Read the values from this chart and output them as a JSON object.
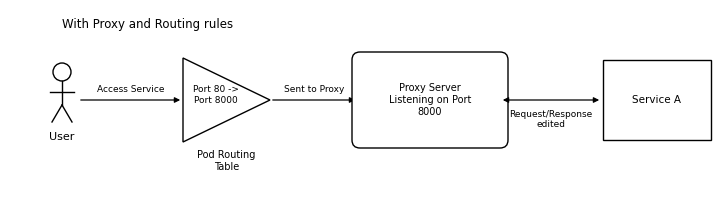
{
  "title": "With Proxy and Routing rules",
  "background_color": "#ffffff",
  "fig_width": 7.17,
  "fig_height": 2.2,
  "dpi": 100,
  "user_label": "User",
  "arrow1_label": "Access Service",
  "triangle_label": "Port 80 ->\nPort 8000",
  "triangle_label2": "Pod Routing\nTable",
  "arrow2_label": "Sent to Proxy",
  "proxy_label": "Proxy Server\nListening on Port\n8000",
  "arrow3_label": "Request/Response\nedited",
  "serviceA_label": "Service A",
  "line_color": "#000000",
  "text_color": "#000000",
  "font_size": 7.0,
  "title_font_size": 8.5
}
